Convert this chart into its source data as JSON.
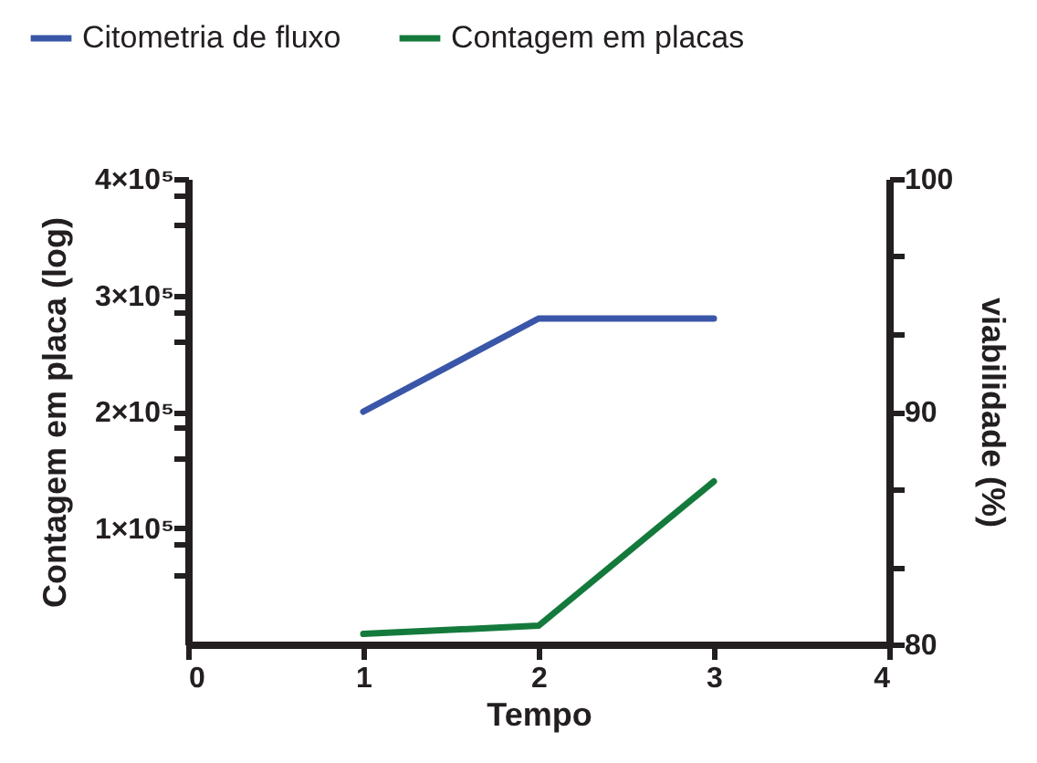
{
  "chart_data": {
    "type": "line",
    "xlabel": "Tempo",
    "ylabel": "Contagem em placa (log)",
    "y2label": "viabilidade (%)",
    "x": [
      1,
      2,
      3
    ],
    "series": [
      {
        "name": "Citometria de fluxo",
        "color": "#3a56a8",
        "axis": "y2",
        "values": [
          90,
          94,
          94
        ]
      },
      {
        "name": "Contagem em placas",
        "color": "#147a3c",
        "values": [
          9000,
          16000,
          140000
        ]
      }
    ],
    "xlim": [
      0,
      4
    ],
    "xticks": [
      0,
      1,
      2,
      3,
      4
    ],
    "ylim": [
      0,
      400000
    ],
    "yticks": [
      {
        "value": 60000,
        "label": null
      },
      {
        "value": 86000,
        "label": null
      },
      {
        "value": 100000,
        "label": "1×10⁵"
      },
      {
        "value": 160000,
        "label": null
      },
      {
        "value": 186000,
        "label": null
      },
      {
        "value": 200000,
        "label": "2×10⁵"
      },
      {
        "value": 260000,
        "label": null
      },
      {
        "value": 286000,
        "label": null
      },
      {
        "value": 300000,
        "label": "3×10⁵"
      },
      {
        "value": 360000,
        "label": null
      },
      {
        "value": 386000,
        "label": null
      },
      {
        "value": 400000,
        "label": "4×10⁵"
      }
    ],
    "y2lim": [
      80,
      100
    ],
    "y2ticks": [
      80,
      {
        "value": 83.3,
        "label": null
      },
      {
        "value": 86.7,
        "label": null
      },
      90,
      {
        "value": 93.3,
        "label": null
      },
      {
        "value": 96.7,
        "label": null
      },
      100
    ],
    "legend": "top left",
    "grid": false,
    "marker": "none",
    "line_style": "solid"
  }
}
